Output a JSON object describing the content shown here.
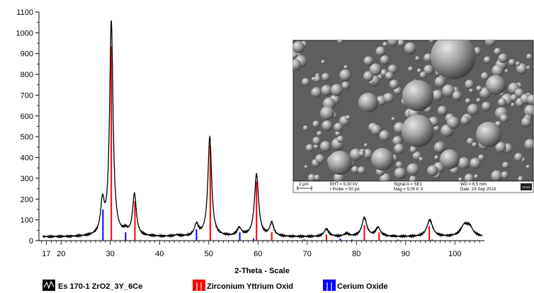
{
  "chart_data": {
    "type": "line",
    "title": "",
    "xlabel": "2-Theta - Scale",
    "ylabel": "",
    "xlim": [
      15.5,
      106
    ],
    "ylim": [
      0,
      1100
    ],
    "x_ticks": [
      17,
      20,
      30,
      40,
      50,
      60,
      70,
      80,
      90,
      100
    ],
    "y_ticks": [
      0,
      100,
      200,
      300,
      400,
      500,
      600,
      700,
      800,
      900,
      1000,
      1100
    ],
    "grid": false,
    "legend_position": "bottom",
    "series": [
      {
        "name": "Es 170-1 ZrO2_3Y_6Ce",
        "type": "line",
        "color": "#000000",
        "background": 18,
        "peaks": [
          {
            "x": 28.4,
            "h": 150,
            "w": 0.45
          },
          {
            "x": 30.2,
            "h": 1030,
            "w": 0.42
          },
          {
            "x": 33.1,
            "h": 20,
            "w": 0.5
          },
          {
            "x": 34.9,
            "h": 200,
            "w": 0.45
          },
          {
            "x": 43.5,
            "h": 6,
            "w": 0.6
          },
          {
            "x": 47.5,
            "h": 55,
            "w": 0.5
          },
          {
            "x": 50.2,
            "h": 480,
            "w": 0.45
          },
          {
            "x": 56.2,
            "h": 38,
            "w": 0.55
          },
          {
            "x": 59.7,
            "h": 300,
            "w": 0.5
          },
          {
            "x": 62.8,
            "h": 62,
            "w": 0.5
          },
          {
            "x": 73.9,
            "h": 36,
            "w": 0.6
          },
          {
            "x": 78.0,
            "h": 14,
            "w": 0.6
          },
          {
            "x": 81.6,
            "h": 90,
            "w": 0.6
          },
          {
            "x": 84.4,
            "h": 42,
            "w": 0.6
          },
          {
            "x": 94.9,
            "h": 80,
            "w": 0.7
          },
          {
            "x": 101.9,
            "h": 50,
            "w": 0.9
          },
          {
            "x": 103.0,
            "h": 40,
            "w": 0.8
          }
        ]
      },
      {
        "name": "Zirconium Yttrium Oxid",
        "type": "sticks",
        "color": "#ff0000",
        "x": [
          30.2,
          35.0,
          50.3,
          59.7,
          62.8,
          73.9,
          81.6,
          84.6,
          94.8
        ],
        "y": [
          935,
          190,
          460,
          285,
          40,
          30,
          75,
          40,
          70
        ]
      },
      {
        "name": "Cerium Oxide",
        "type": "sticks",
        "color": "#0000ff",
        "x": [
          28.5,
          33.1,
          47.5,
          56.3,
          59.1,
          69.4,
          76.7,
          79.1,
          88.4,
          95.4
        ],
        "y": [
          150,
          40,
          55,
          40,
          10,
          5,
          10,
          5,
          5,
          5
        ]
      }
    ],
    "inset": {
      "scale_bar": "2 µm",
      "eht": "EHT =  5.00 kV",
      "probe": "I Probe =    50 pA",
      "signal": "Signal A = SE1",
      "mag": "Mag =    5.00 K X",
      "wd": "WD =  8.5 mm",
      "date": "Date :19 Sep 2014",
      "logo": "ZEISS"
    }
  }
}
